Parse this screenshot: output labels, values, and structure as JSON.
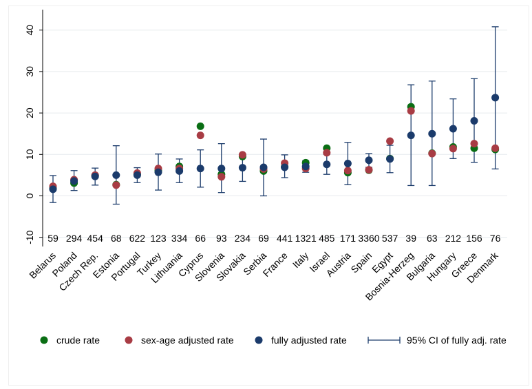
{
  "chart_data": {
    "type": "scatter",
    "categories": [
      "Belarus",
      "Poland",
      "Czech Rep.",
      "Estonia",
      "Portugal",
      "Turkey",
      "Lithuania",
      "Cyprus",
      "Slovenia",
      "Slovakia",
      "Serbia",
      "France",
      "Italy",
      "Israel",
      "Austria",
      "Spain",
      "Egypt",
      "Bosnia-Herzeg",
      "Bulgaria",
      "Hungary",
      "Greece",
      "Denmark"
    ],
    "counts": [
      "59",
      "294",
      "454",
      "68",
      "622",
      "123",
      "334",
      "66",
      "93",
      "234",
      "69",
      "441",
      "1321",
      "485",
      "171",
      "3360",
      "537",
      "39",
      "63",
      "212",
      "156",
      "76"
    ],
    "yticks": [
      "-10",
      "0",
      "10",
      "20",
      "30",
      "40"
    ],
    "ylim": [
      -11,
      42
    ],
    "grid": "horizontal",
    "legend_position": "bottom",
    "series": [
      {
        "name": "crude rate",
        "color": "#0a6e14",
        "values": [
          1.8,
          3.1,
          4.9,
          2.7,
          5.2,
          6.1,
          7.1,
          16.8,
          5.2,
          9.5,
          6.0,
          7.0,
          8.0,
          11.5,
          5.6,
          6.2,
          9.0,
          21.5,
          10.3,
          11.8,
          11.5,
          11.2
        ]
      },
      {
        "name": "sex-age adjusted rate",
        "color": "#a83c44",
        "values": [
          2.3,
          3.9,
          5.0,
          2.6,
          5.5,
          6.6,
          6.6,
          14.6,
          4.6,
          9.9,
          6.5,
          7.9,
          6.6,
          10.4,
          6.1,
          6.3,
          13.2,
          20.5,
          10.2,
          11.4,
          12.6,
          11.5
        ]
      },
      {
        "name": "fully adjusted rate",
        "color": "#1b3b6b",
        "values": [
          1.6,
          3.6,
          4.7,
          5.0,
          5.0,
          5.7,
          6.0,
          6.6,
          6.6,
          6.8,
          6.9,
          6.9,
          7.1,
          7.6,
          7.8,
          8.6,
          8.9,
          14.6,
          15.0,
          16.2,
          18.1,
          23.7
        ]
      },
      {
        "name": "95% CI of fully adj. rate",
        "color": "#1b3b6b",
        "kind": "errorbar",
        "lower": [
          -1.6,
          1.3,
          2.6,
          -2.0,
          3.2,
          1.4,
          3.2,
          2.1,
          0.8,
          3.5,
          0.0,
          4.4,
          5.7,
          5.2,
          2.7,
          6.9,
          5.6,
          2.5,
          2.5,
          9.0,
          8.1,
          6.5
        ],
        "upper": [
          4.9,
          6.1,
          6.7,
          12.1,
          6.8,
          10.1,
          8.9,
          11.1,
          12.6,
          10.2,
          13.7,
          9.9,
          8.5,
          10.0,
          12.9,
          10.2,
          12.2,
          26.8,
          27.7,
          23.4,
          28.3,
          40.8
        ]
      }
    ]
  }
}
